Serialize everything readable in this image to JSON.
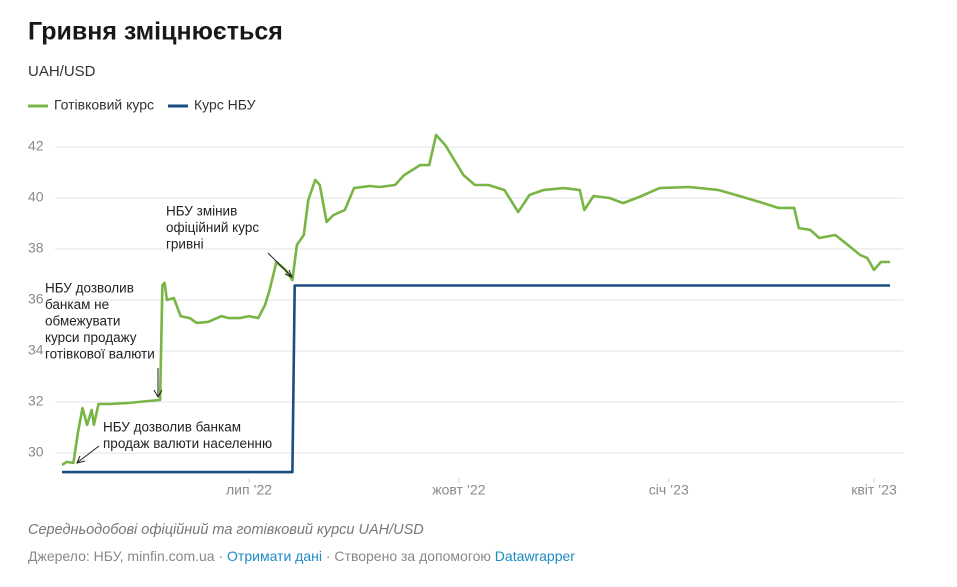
{
  "chart_data": {
    "type": "line",
    "title": "Гривня зміцнюється",
    "subtitle": "UAH/USD",
    "grid": true,
    "ylim": [
      29,
      43
    ],
    "yticks": [
      30,
      32,
      34,
      36,
      38,
      40,
      42
    ],
    "xlim": [
      "2022-04-10",
      "2023-04-08"
    ],
    "xticks": [
      {
        "value": "2022-07-01",
        "label": "лип ’22"
      },
      {
        "value": "2022-10-01",
        "label": "жовт ’22"
      },
      {
        "value": "2023-01-01",
        "label": "січ ’23"
      },
      {
        "value": "2023-04-01",
        "label": "квіт ’23"
      }
    ],
    "series": [
      {
        "name": "Готівковий курс",
        "color": "#78b545",
        "x": [
          "2022-04-10",
          "2022-04-12",
          "2022-04-15",
          "2022-04-17",
          "2022-04-19",
          "2022-04-21",
          "2022-04-23",
          "2022-04-24",
          "2022-04-26",
          "2022-05-01",
          "2022-05-09",
          "2022-05-18",
          "2022-05-23",
          "2022-05-24",
          "2022-05-25",
          "2022-05-26",
          "2022-05-29",
          "2022-06-01",
          "2022-06-05",
          "2022-06-08",
          "2022-06-13",
          "2022-06-19",
          "2022-06-22",
          "2022-06-27",
          "2022-07-01",
          "2022-07-05",
          "2022-07-08",
          "2022-07-10",
          "2022-07-13",
          "2022-07-17",
          "2022-07-20",
          "2022-07-22",
          "2022-07-25",
          "2022-07-27",
          "2022-07-30",
          "2022-08-01",
          "2022-08-04",
          "2022-08-07",
          "2022-08-12",
          "2022-08-16",
          "2022-08-23",
          "2022-08-27",
          "2022-09-03",
          "2022-09-07",
          "2022-09-14",
          "2022-09-18",
          "2022-09-21",
          "2022-09-25",
          "2022-09-29",
          "2022-10-03",
          "2022-10-08",
          "2022-10-14",
          "2022-10-21",
          "2022-10-27",
          "2022-11-01",
          "2022-11-07",
          "2022-11-16",
          "2022-11-23",
          "2022-11-25",
          "2022-11-29",
          "2022-12-06",
          "2022-12-12",
          "2022-12-19",
          "2022-12-28",
          "2023-01-10",
          "2023-01-23",
          "2023-02-01",
          "2023-02-10",
          "2023-02-18",
          "2023-02-25",
          "2023-02-27",
          "2023-03-04",
          "2023-03-08",
          "2023-03-15",
          "2023-03-19",
          "2023-03-26",
          "2023-03-29",
          "2023-04-01",
          "2023-04-04",
          "2023-04-08"
        ],
        "values": [
          29.53,
          29.65,
          29.61,
          30.82,
          31.76,
          31.1,
          31.69,
          31.1,
          31.92,
          31.92,
          31.96,
          32.04,
          32.08,
          36.59,
          36.67,
          36.0,
          36.08,
          35.37,
          35.29,
          35.1,
          35.14,
          35.37,
          35.29,
          35.29,
          35.37,
          35.29,
          35.8,
          36.39,
          37.49,
          37.18,
          36.78,
          38.16,
          38.55,
          39.92,
          40.71,
          40.51,
          39.06,
          39.33,
          39.53,
          40.39,
          40.47,
          40.43,
          40.51,
          40.9,
          41.29,
          41.29,
          42.47,
          42.08,
          41.49,
          40.9,
          40.51,
          40.51,
          40.31,
          39.45,
          40.12,
          40.31,
          40.39,
          40.31,
          39.53,
          40.08,
          40.0,
          39.8,
          40.04,
          40.39,
          40.43,
          40.31,
          40.08,
          39.84,
          39.61,
          39.61,
          38.82,
          38.75,
          38.43,
          38.55,
          38.27,
          37.76,
          37.65,
          37.18,
          37.49,
          37.49
        ]
      },
      {
        "name": "Курс НБУ",
        "color": "#1b4e80",
        "x": [
          "2022-04-10",
          "2022-07-20",
          "2022-07-21",
          "2023-04-08"
        ],
        "values": [
          29.25,
          29.25,
          36.57,
          36.57
        ]
      }
    ],
    "annotations": [
      {
        "lines": [
          "НБУ змінив",
          "офіційний курс",
          "гривні"
        ]
      },
      {
        "lines": [
          "НБУ дозволив",
          "банкам не",
          "обмежувати",
          "курси продажу",
          "готівкової валюти"
        ]
      },
      {
        "lines": [
          "НБУ дозволив банкам",
          "продаж валюти населенню"
        ]
      }
    ],
    "notes": "Середньодобові офіційний та готівковий курси UAH/USD",
    "source": {
      "label": "Джерело:",
      "text": "НБУ, minfin.com.ua",
      "sep": "·",
      "get_data": "Отримати дані",
      "made_with": "Створено за допомогою",
      "tool": "Datawrapper"
    }
  }
}
